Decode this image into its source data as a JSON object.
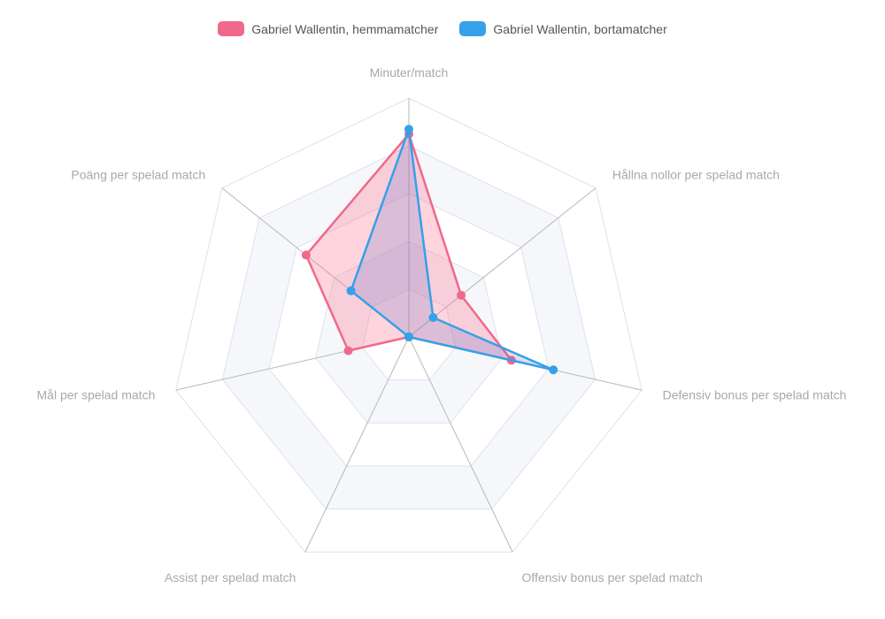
{
  "chart_data": {
    "type": "radar",
    "categories": [
      "Minuter/match",
      "Hållna nollor per spelad match",
      "Defensiv bonus per spelad match",
      "Offensiv bonus per spelad match",
      "Assist per spelad match",
      "Mål per spelad match",
      "Poäng per spelad match"
    ],
    "series": [
      {
        "name": "Gabriel Wallentin, hemmamatcher",
        "values": [
          0.85,
          0.28,
          0.44,
          0.0,
          0.0,
          0.26,
          0.55
        ],
        "color": "#f0698a",
        "fill": "rgba(255, 99, 132, 0.28)"
      },
      {
        "name": "Gabriel Wallentin, bortamatcher",
        "values": [
          0.87,
          0.13,
          0.62,
          0.0,
          0.0,
          0.0,
          0.31
        ],
        "color": "#36a0e8",
        "fill": "rgba(95, 110, 200, 0.22)"
      }
    ],
    "rlim": [
      0,
      1
    ],
    "grid": true,
    "legend_position": "top"
  }
}
